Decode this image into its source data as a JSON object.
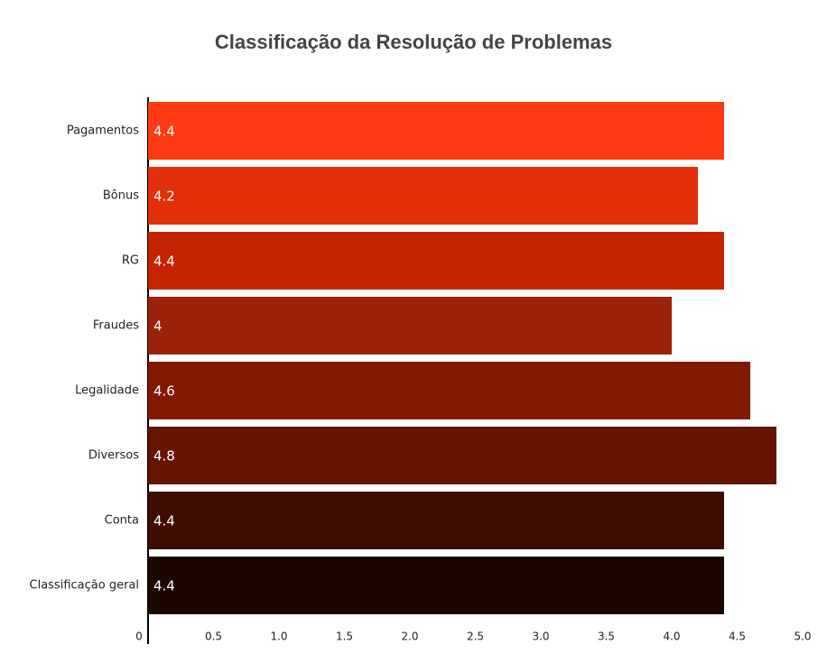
{
  "chart_data": {
    "type": "bar",
    "orientation": "horizontal",
    "title": "Classificação da Resolução de Problemas",
    "categories": [
      "Pagamentos",
      "Bônus",
      "RG",
      "Fraudes",
      "Legalidade",
      "Diversos",
      "Conta",
      "Classificação geral"
    ],
    "values": [
      4.4,
      4.2,
      4.4,
      4,
      4.6,
      4.8,
      4.4,
      4.4
    ],
    "colors": [
      "#ff3a12",
      "#e32f0a",
      "#c42402",
      "#9b2108",
      "#821a02",
      "#651402",
      "#3e0c01",
      "#1c0700"
    ],
    "xlim": [
      0,
      5
    ],
    "xticks": [
      0,
      0.5,
      {
        "value": 1,
        "label": "1.0"
      },
      1.5,
      {
        "value": 2,
        "label": "2.0"
      },
      2.5,
      {
        "value": 3,
        "label": "3.0"
      },
      3.5,
      {
        "value": 4,
        "label": "4.0"
      },
      4.5,
      {
        "value": 5,
        "label": "5.0"
      }
    ]
  }
}
